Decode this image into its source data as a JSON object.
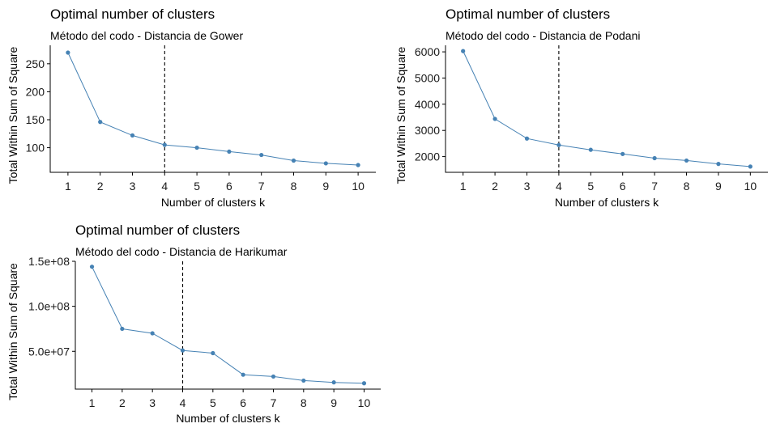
{
  "colors": {
    "line": "#4682B4",
    "point": "#4682B4",
    "axis": "#000000",
    "vline": "#000000",
    "background": "#ffffff"
  },
  "chart_data": [
    {
      "type": "line",
      "title": "Optimal number of clusters",
      "subtitle": "Método del codo - Distancia de Gower",
      "xlabel": "Number of clusters k",
      "ylabel": "Total Within Sum of Square",
      "x": [
        1,
        2,
        3,
        4,
        5,
        6,
        7,
        8,
        9,
        10
      ],
      "series": [
        {
          "values": [
            270,
            146,
            122,
            105,
            100,
            93,
            87,
            77,
            72,
            69
          ]
        }
      ],
      "optimal_k": 4,
      "vline_style": "dashed",
      "ylim": [
        56,
        283
      ],
      "yticks": [
        100,
        150,
        200,
        250
      ],
      "ytick_labels": [
        "100",
        "150",
        "200",
        "250"
      ],
      "xtick_labels": [
        "1",
        "2",
        "3",
        "4",
        "5",
        "6",
        "7",
        "8",
        "9",
        "10"
      ],
      "grid": false
    },
    {
      "type": "line",
      "title": "Optimal number of clusters",
      "subtitle": "Método del codo - Distancia de Podani",
      "xlabel": "Number of clusters k",
      "ylabel": "Total Within Sum of Square",
      "x": [
        1,
        2,
        3,
        4,
        5,
        6,
        7,
        8,
        9,
        10
      ],
      "series": [
        {
          "values": [
            6030,
            3440,
            2690,
            2440,
            2260,
            2100,
            1940,
            1850,
            1720,
            1620
          ]
        }
      ],
      "optimal_k": 4,
      "vline_style": "dashed",
      "ylim": [
        1400,
        6250
      ],
      "yticks": [
        2000,
        3000,
        4000,
        5000,
        6000
      ],
      "ytick_labels": [
        "2000",
        "3000",
        "4000",
        "5000",
        "6000"
      ],
      "xtick_labels": [
        "1",
        "2",
        "3",
        "4",
        "5",
        "6",
        "7",
        "8",
        "9",
        "10"
      ],
      "grid": false
    },
    {
      "type": "line",
      "title": "Optimal number of clusters",
      "subtitle": "Método del codo - Distancia de Harikumar",
      "xlabel": "Number of clusters k",
      "ylabel": "Total Within Sum of Square",
      "x": [
        1,
        2,
        3,
        4,
        5,
        6,
        7,
        8,
        9,
        10
      ],
      "series": [
        {
          "values": [
            144000000,
            75000000,
            70000000,
            51000000,
            48000000,
            24000000,
            22000000,
            17500000,
            15500000,
            14500000
          ]
        }
      ],
      "optimal_k": 4,
      "vline_style": "dashed",
      "ylim": [
        8000000,
        150000000
      ],
      "yticks": [
        50000000,
        100000000,
        150000000
      ],
      "ytick_labels": [
        "5.0e+07",
        "1.0e+08",
        "1.5e+08"
      ],
      "xtick_labels": [
        "1",
        "2",
        "3",
        "4",
        "5",
        "6",
        "7",
        "8",
        "9",
        "10"
      ],
      "grid": false
    }
  ]
}
